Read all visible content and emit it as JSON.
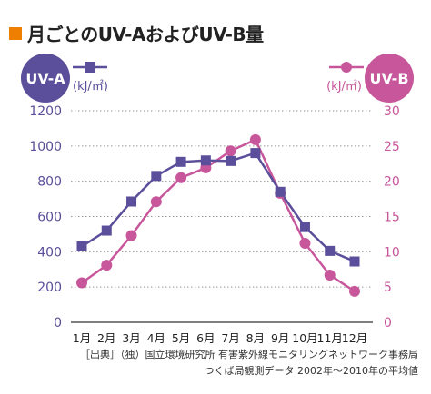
{
  "header": {
    "title": "月ごとのUV-AおよびUV-B量"
  },
  "source": {
    "line1": "［出典］（独）国立環境研究所 有害紫外線モニタリングネットワーク事務局",
    "line2": "つくば局観測データ 2002年～2010年の平均値"
  },
  "chart_data": {
    "type": "line",
    "title": "月ごとのUV-AおよびUV-B量",
    "categories": [
      "1月",
      "2月",
      "3月",
      "4月",
      "5月",
      "6月",
      "7月",
      "8月",
      "9月",
      "10月",
      "11月",
      "12月"
    ],
    "series": [
      {
        "name": "UV-A",
        "unit": "(kJ/㎡)",
        "axis": "left",
        "marker": "square",
        "color": "#5b4e9a",
        "values": [
          430,
          520,
          685,
          830,
          910,
          918,
          915,
          960,
          740,
          540,
          405,
          345
        ]
      },
      {
        "name": "UV-B",
        "unit": "(kJ/㎡)",
        "axis": "right",
        "marker": "circle",
        "color": "#c8569b",
        "values": [
          5.6,
          8.1,
          12.3,
          17.1,
          20.5,
          21.9,
          24.3,
          25.9,
          18.3,
          11.2,
          6.7,
          4.4
        ]
      }
    ],
    "left_axis": {
      "ticks": [
        "0",
        "200",
        "400",
        "600",
        "800",
        "1000",
        "1200"
      ],
      "ylim": [
        0,
        1200
      ],
      "color": "#5b4e9a"
    },
    "right_axis": {
      "ticks": [
        "0",
        "5",
        "10",
        "15",
        "20",
        "25",
        "30"
      ],
      "ylim": [
        0,
        30
      ],
      "color": "#c8569b"
    },
    "grid": true,
    "legend": "top"
  }
}
